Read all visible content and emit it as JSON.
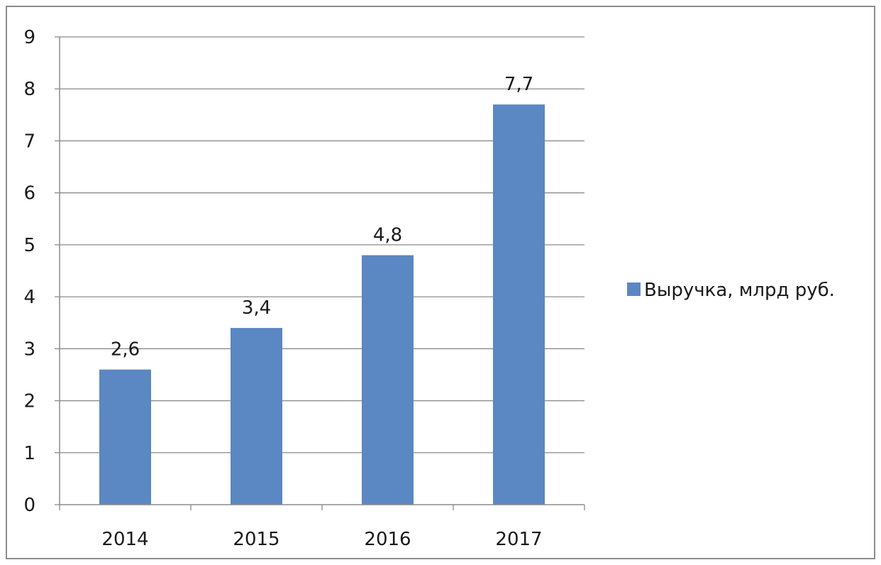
{
  "chart_data": {
    "type": "bar",
    "title": "",
    "xlabel": "",
    "ylabel": "",
    "categories": [
      "2014",
      "2015",
      "2016",
      "2017"
    ],
    "series": [
      {
        "name": "Выручка, млрд руб.",
        "values": [
          2.6,
          3.4,
          4.8,
          7.7
        ],
        "data_labels": [
          "2,6",
          "3,4",
          "4,8",
          "7,7"
        ]
      }
    ],
    "ylim": [
      0,
      9
    ],
    "yticks": [
      "0",
      "1",
      "2",
      "3",
      "4",
      "5",
      "6",
      "7",
      "8",
      "9"
    ],
    "grid": true,
    "legend_position": "right",
    "colors": {
      "bar": "#5b87c3",
      "grid": "#8c8c8c",
      "axis": "#8c8c8c"
    }
  }
}
